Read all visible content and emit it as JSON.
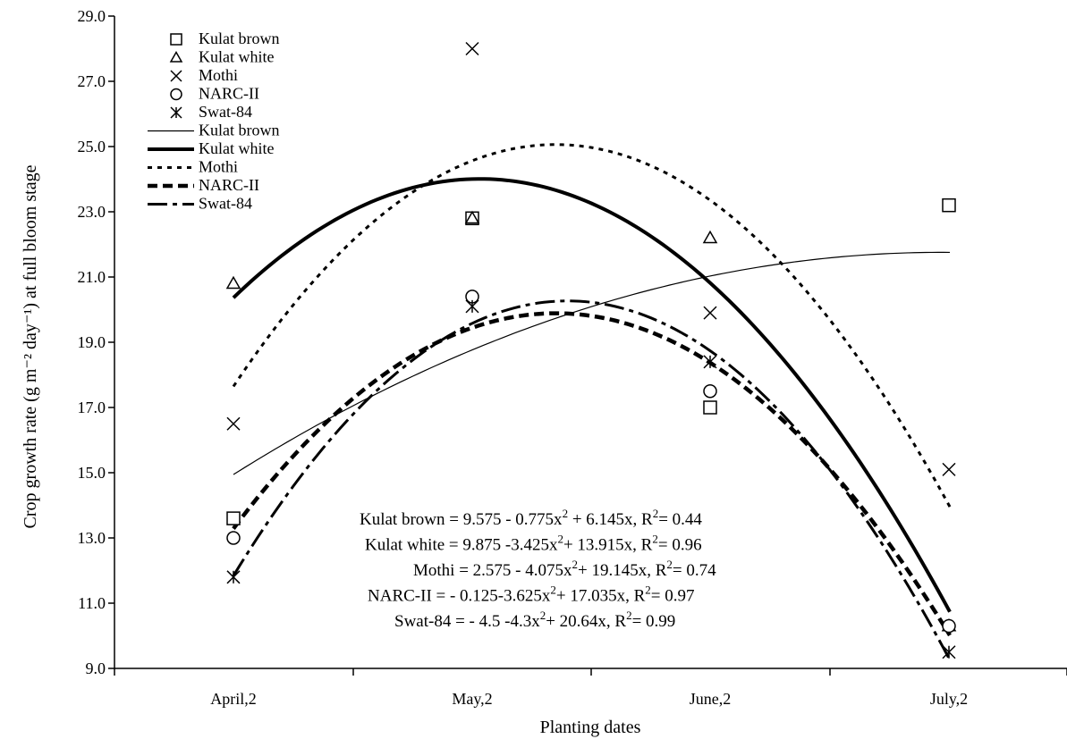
{
  "chart_data": {
    "type": "scatter",
    "xlabel": "Planting dates",
    "ylabel": "Crop growth rate  (g m⁻² day⁻¹) at full bloom stage",
    "categories": [
      "April,2",
      "May,2",
      "June,2",
      "July,2"
    ],
    "ylim": [
      9.0,
      29.0
    ],
    "yticks": [
      "9.0",
      "11.0",
      "13.0",
      "15.0",
      "17.0",
      "19.0",
      "21.0",
      "23.0",
      "25.0",
      "27.0",
      "29.0"
    ],
    "grid": false,
    "legend_position": "top-left",
    "series": [
      {
        "name": "Kulat brown",
        "marker": "square",
        "values": [
          13.6,
          22.8,
          17.0,
          23.2
        ],
        "trend": [
          9.575,
          6.145,
          -0.775
        ],
        "line": "thin"
      },
      {
        "name": "Kulat white",
        "marker": "triangle",
        "values": [
          20.8,
          22.8,
          22.2,
          10.3
        ],
        "trend": [
          9.875,
          13.915,
          -3.425
        ],
        "line": "thick"
      },
      {
        "name": "Mothi",
        "marker": "x",
        "values": [
          16.5,
          28.0,
          19.9,
          15.1
        ],
        "trend": [
          2.575,
          19.145,
          -4.075
        ],
        "line": "dotted"
      },
      {
        "name": "NARC-II",
        "marker": "circle",
        "values": [
          13.0,
          20.4,
          17.5,
          10.3
        ],
        "trend": [
          -0.125,
          17.035,
          -3.625
        ],
        "line": "dashed"
      },
      {
        "name": "Swat-84",
        "marker": "asterisk",
        "values": [
          11.8,
          20.1,
          18.4,
          9.5
        ],
        "trend": [
          -4.5,
          20.64,
          -4.3
        ],
        "line": "dashdot"
      }
    ],
    "legend": {
      "markers": [
        "Kulat brown",
        "Kulat white",
        "Mothi",
        "NARC-II",
        "Swat-84"
      ],
      "lines": [
        "Kulat brown",
        "Kulat white",
        "Mothi",
        "NARC-II",
        "Swat-84"
      ]
    },
    "equations": [
      {
        "lhs": "Kulat brown = 9.575 - 0.775x",
        "mid": " + 6.145x, R",
        "rhs": "= 0.44"
      },
      {
        "lhs": "Kulat white = 9.875 -3.425x",
        "mid": "+ 13.915x, R",
        "rhs": "= 0.96"
      },
      {
        "lhs": "Mothi = 2.575 - 4.075x",
        "mid": "+ 19.145x, R",
        "rhs": "= 0.74"
      },
      {
        "lhs": "NARC-II = - 0.125-3.625x",
        "mid": "+ 17.035x, R",
        "rhs": "= 0.97"
      },
      {
        "lhs": "Swat-84 = - 4.5 -4.3x",
        "mid": "+ 20.64x, R",
        "rhs": "= 0.99"
      }
    ]
  }
}
